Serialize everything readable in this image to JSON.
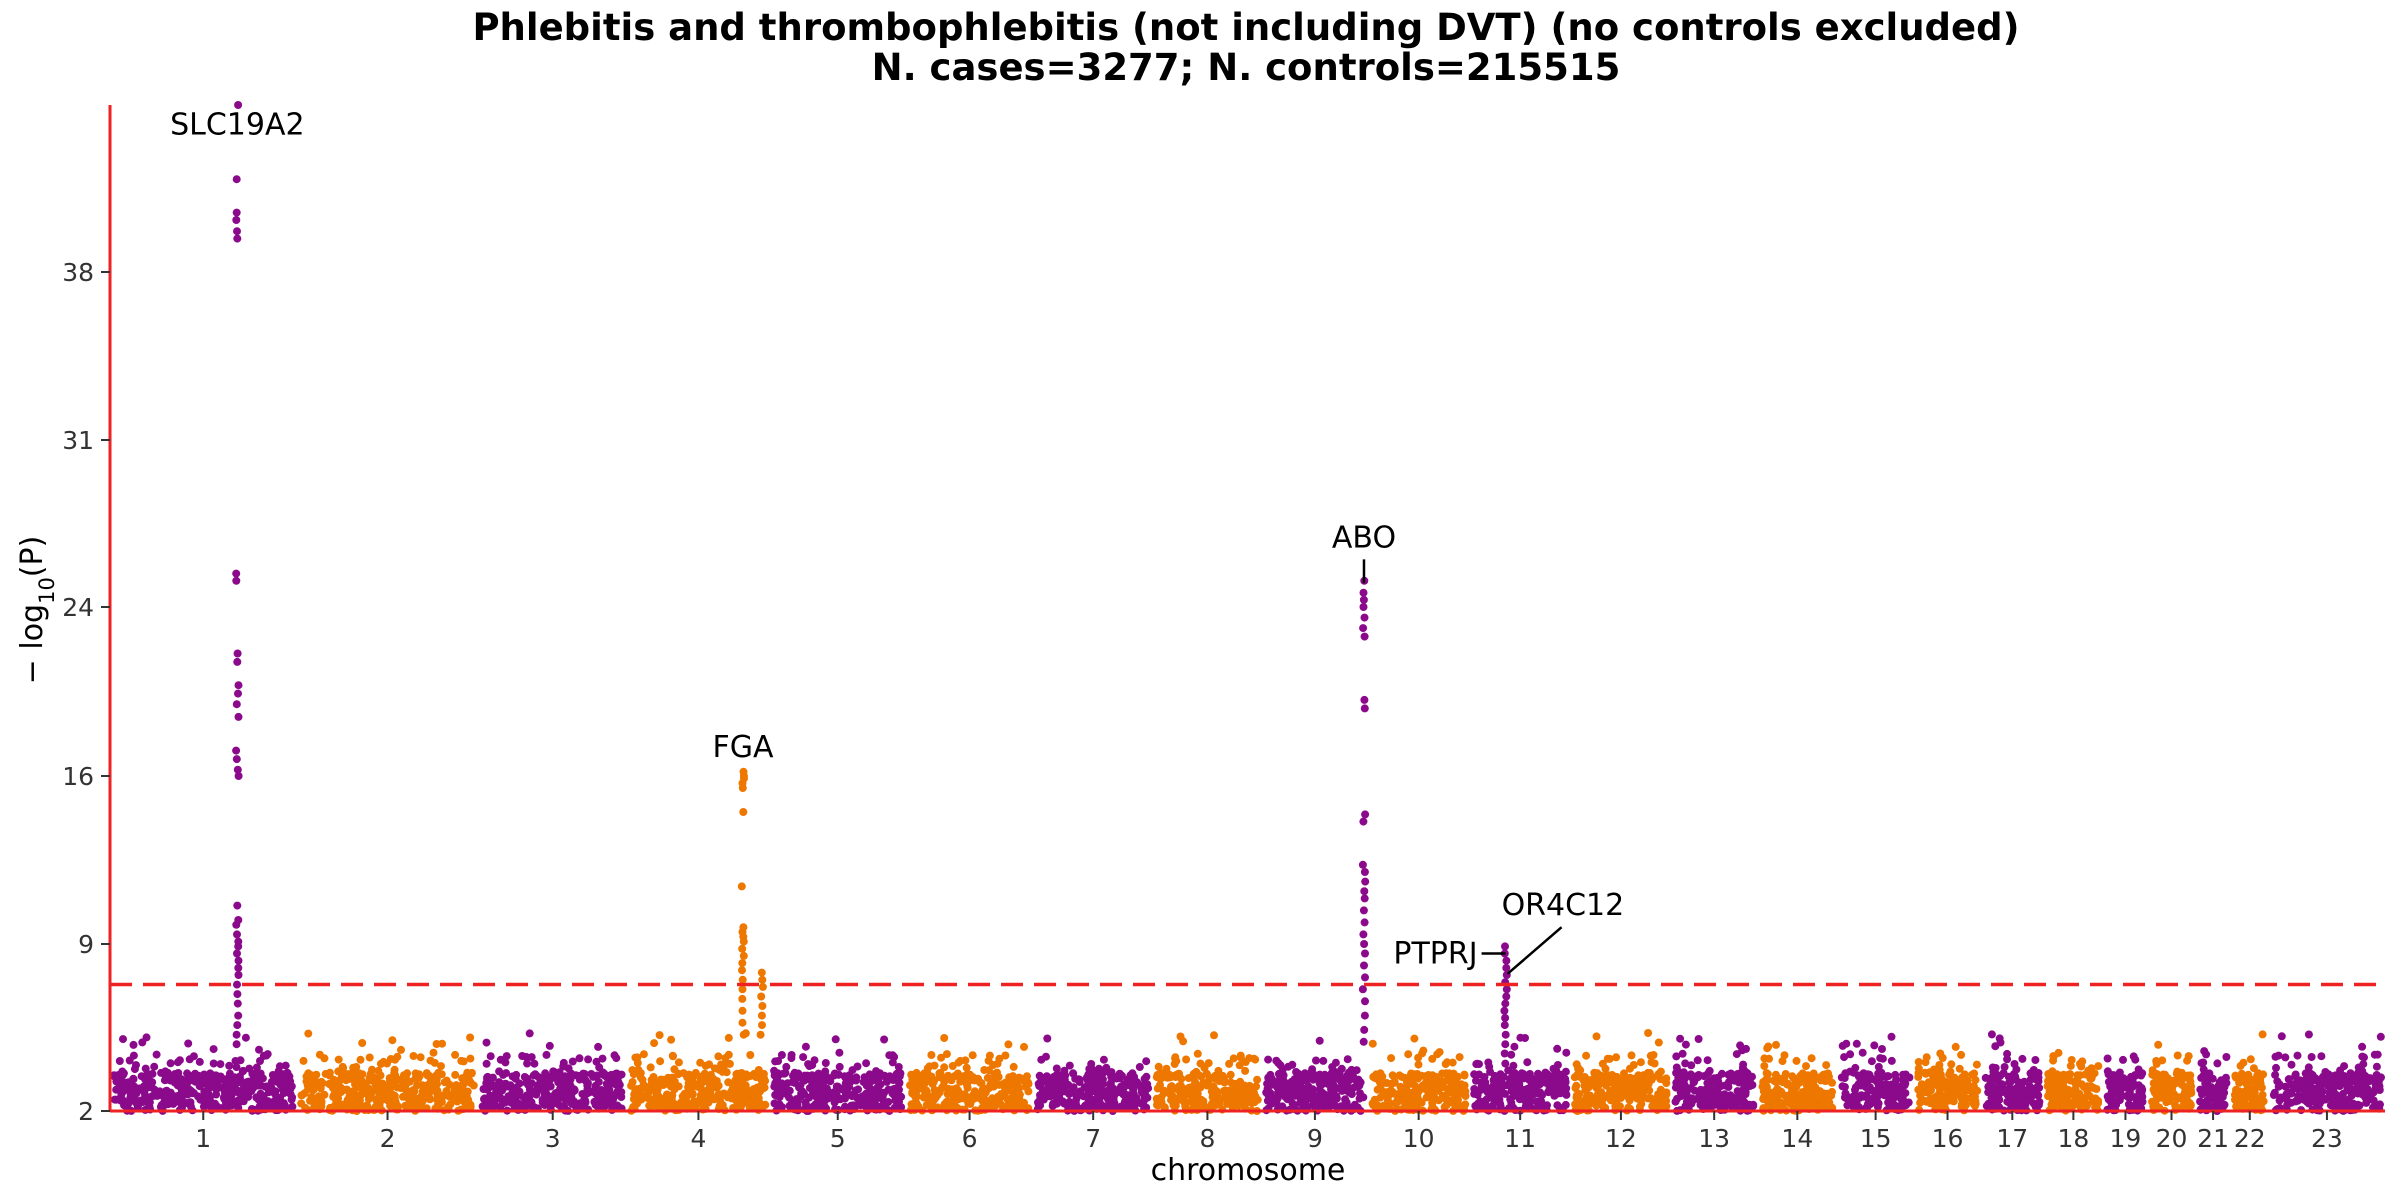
{
  "chart_data": {
    "type": "scatter",
    "subtype": "manhattan",
    "title": "Phlebitis and thrombophlebitis (not including DVT) (no controls excluded)",
    "subtitle": "N. cases=3277; N. controls=215515",
    "xlabel": "chromosome",
    "ylabel_parts": {
      "prefix": "− log",
      "subscript": "10",
      "suffix": "(P)"
    },
    "y_scale": "broken",
    "y_ticks": [
      2,
      9,
      16,
      24,
      31,
      38
    ],
    "y_break_domain": [
      2,
      9,
      16,
      24,
      31,
      38,
      42.5
    ],
    "significance_threshold": 7.3,
    "threshold_line": {
      "style": "dashed",
      "color": "#ee2222"
    },
    "axis_color": "#ee2222",
    "colors": {
      "odd": "#8b0a8b",
      "even": "#ee7700"
    },
    "chromosomes": [
      {
        "label": "1",
        "length": 249
      },
      {
        "label": "2",
        "length": 243
      },
      {
        "label": "3",
        "length": 198
      },
      {
        "label": "4",
        "length": 191
      },
      {
        "label": "5",
        "length": 181
      },
      {
        "label": "6",
        "length": 171
      },
      {
        "label": "7",
        "length": 159
      },
      {
        "label": "8",
        "length": 146
      },
      {
        "label": "9",
        "length": 141
      },
      {
        "label": "10",
        "length": 136
      },
      {
        "label": "11",
        "length": 135
      },
      {
        "label": "12",
        "length": 134
      },
      {
        "label": "13",
        "length": 115
      },
      {
        "label": "14",
        "length": 107
      },
      {
        "label": "15",
        "length": 102
      },
      {
        "label": "16",
        "length": 90
      },
      {
        "label": "17",
        "length": 83
      },
      {
        "label": "18",
        "length": 80
      },
      {
        "label": "19",
        "length": 59
      },
      {
        "label": "20",
        "length": 64
      },
      {
        "label": "21",
        "length": 47
      },
      {
        "label": "22",
        "length": 51
      },
      {
        "label": "23",
        "length": 155
      }
    ],
    "peaks": [
      {
        "chrom": "1",
        "pos": 170,
        "max": 42.5,
        "values": [
          42.5,
          40.5,
          39.6,
          39.4,
          39.1,
          38.9,
          25.4,
          25.1,
          21.8,
          21.4,
          20.3,
          19.9,
          19.4,
          18.8,
          17.2,
          16.8,
          16.3,
          16.0,
          10.6,
          10.0,
          9.8,
          9.4,
          9.1,
          8.9,
          8.6,
          8.3,
          8.0,
          7.7,
          7.3,
          6.9,
          6.5,
          6.0,
          5.6,
          5.2,
          4.8
        ]
      },
      {
        "chrom": "4",
        "pos": 155,
        "max": 16.2,
        "values": [
          16.2,
          16.0,
          15.9,
          15.7,
          15.5,
          14.5,
          11.4,
          9.7,
          9.5,
          9.3,
          9.1,
          8.8,
          8.5,
          8.2,
          7.9,
          7.5,
          7.1,
          6.7,
          6.2,
          5.7,
          5.2
        ]
      },
      {
        "chrom": "4",
        "pos": 180,
        "max": 7.8,
        "values": [
          7.8,
          7.5,
          7.2,
          6.8,
          6.4,
          6.0,
          5.6,
          5.2
        ]
      },
      {
        "chrom": "9",
        "pos": 136,
        "max": 25.1,
        "values": [
          25.1,
          24.6,
          24.3,
          24.0,
          23.5,
          23.0,
          22.6,
          19.6,
          19.2,
          14.4,
          14.1,
          12.3,
          12.0,
          11.6,
          11.2,
          10.9,
          10.4,
          9.9,
          9.4,
          9.0,
          8.6,
          8.1,
          7.6,
          7.1,
          6.6,
          6.0,
          5.4,
          4.9
        ]
      },
      {
        "chrom": "11",
        "pos": 48,
        "max": 8.9,
        "values": [
          8.9,
          8.6,
          8.3,
          8.0,
          7.7,
          7.4,
          7.1,
          6.8,
          6.5,
          6.2,
          5.9,
          5.6,
          5.2,
          4.8
        ]
      }
    ],
    "annotations": [
      {
        "gene": "SLC19A2",
        "chrom": "1",
        "pos": 170,
        "y": 41.7,
        "leader": false
      },
      {
        "gene": "FGA",
        "chrom": "4",
        "pos": 155,
        "y": 16.9,
        "leader": false
      },
      {
        "gene": "ABO",
        "chrom": "9",
        "pos": 136,
        "y": 26.5,
        "leader": true,
        "leader_to": 25.0
      },
      {
        "gene": "PTPRJ",
        "chrom": "11",
        "pos": 48,
        "y": 8.6,
        "leader": true,
        "leader_to": 8.6,
        "anchor": "end"
      },
      {
        "gene": "OR4C12",
        "chrom": "11",
        "pos": 48,
        "y": 10.2,
        "leader": true,
        "leader_to": 8.0,
        "anchor": "start"
      }
    ],
    "grid": false,
    "legend": "none"
  }
}
